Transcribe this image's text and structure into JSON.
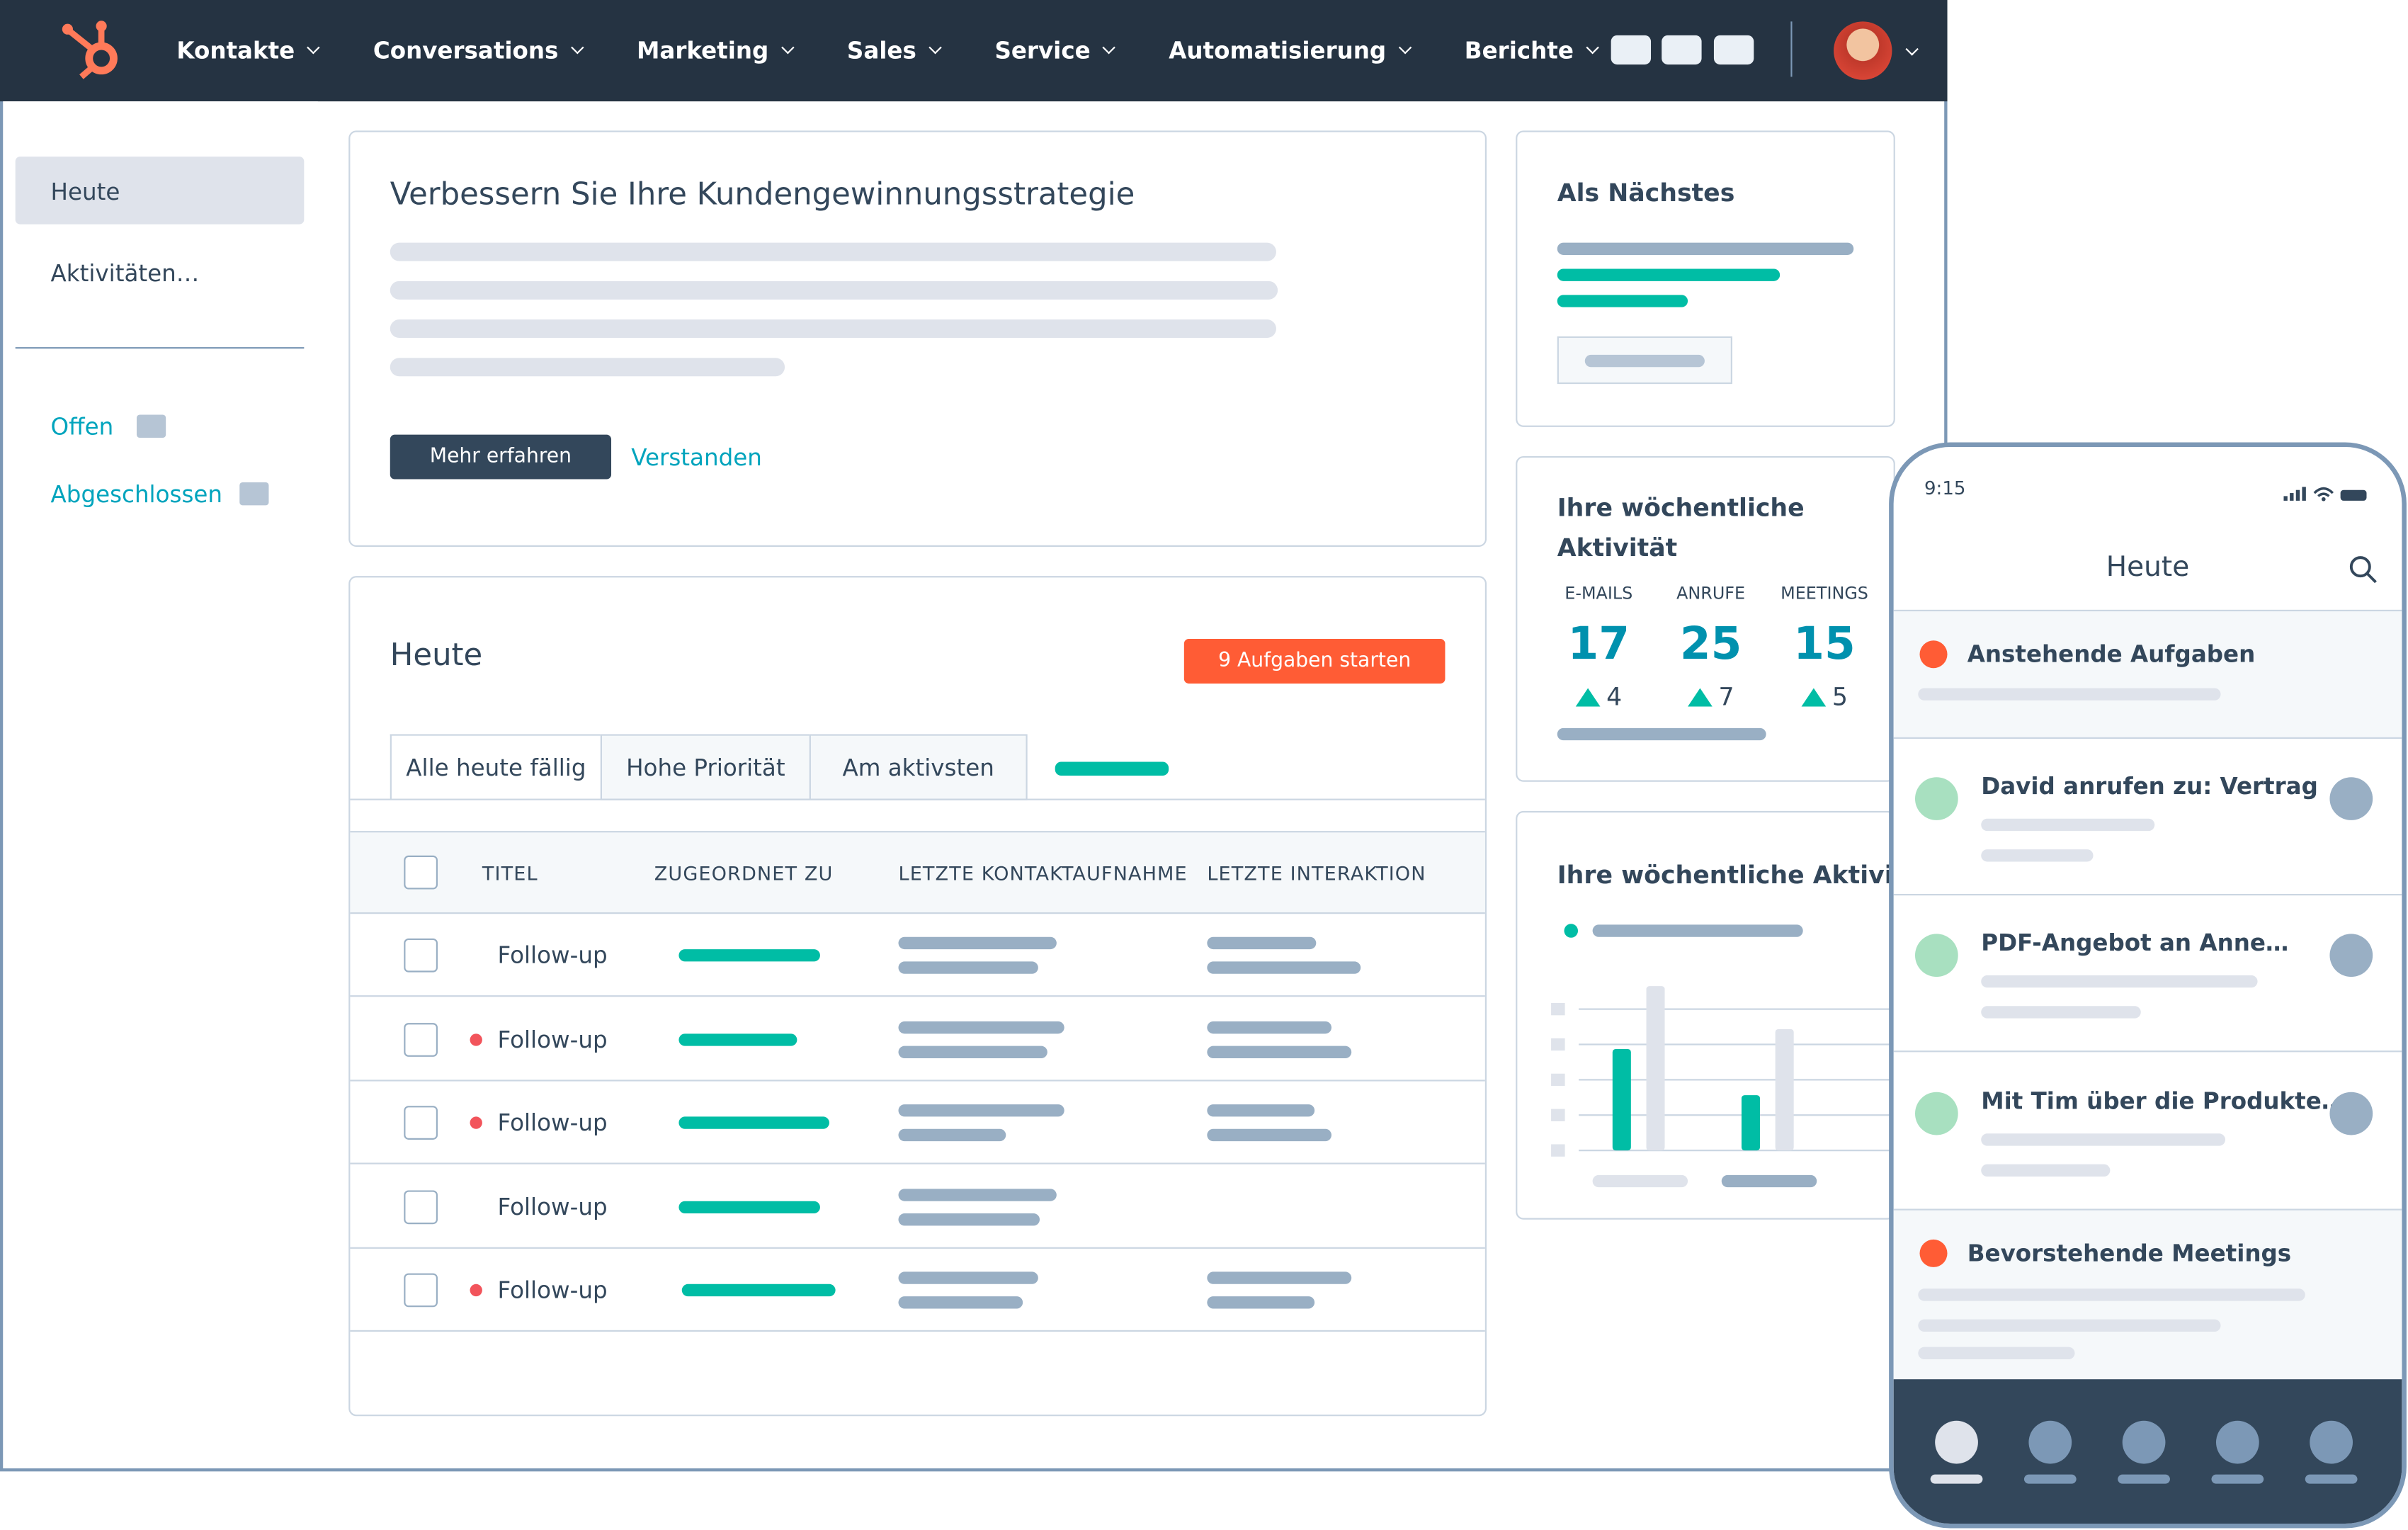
{
  "nav": {
    "items": [
      "Kontakte",
      "Conversations",
      "Marketing",
      "Sales",
      "Service",
      "Automatisierung",
      "Berichte"
    ]
  },
  "sidebar": {
    "items": [
      "Heute",
      "Aktivitäten…"
    ],
    "filters": [
      "Offen",
      "Abgeschlossen"
    ]
  },
  "banner": {
    "title": "Verbessern Sie Ihre Kundengewinnungsstrategie",
    "primary_button": "Mehr erfahren",
    "secondary_button": "Verstanden"
  },
  "today": {
    "title": "Heute",
    "button": "9 Aufgaben starten",
    "tabs": [
      "Alle heute fällig",
      "Hohe Priorität",
      "Am aktivsten"
    ],
    "columns": [
      "TITEL",
      "ZUGEORDNET ZU",
      "LETZTE KONTAKTAUFNAHME",
      "LETZTE INTERAKTION"
    ],
    "rows": [
      "Follow-up",
      "Follow-up",
      "Follow-up",
      "Follow-up",
      "Follow-up"
    ]
  },
  "next": {
    "title": "Als Nächstes"
  },
  "weekly": {
    "title": "Ihre wöchentliche Aktivität",
    "stats": [
      {
        "label": "E-MAILS",
        "value": 17,
        "change": 4
      },
      {
        "label": "ANRUFE",
        "value": 25,
        "change": 7
      },
      {
        "label": "MEETINGS",
        "value": 15,
        "change": 5
      }
    ]
  },
  "weekly_chart": {
    "title": "Ihre wöchentliche Aktivität"
  },
  "mobile": {
    "time": "9:15",
    "title": "Heute",
    "sections": [
      "Anstehende Aufgaben",
      "Bevorstehende Meetings"
    ],
    "items": [
      "David anrufen zu: Vertrag",
      "PDF-Angebot an Anne…",
      "Mit Tim über die Produkte…"
    ]
  }
}
